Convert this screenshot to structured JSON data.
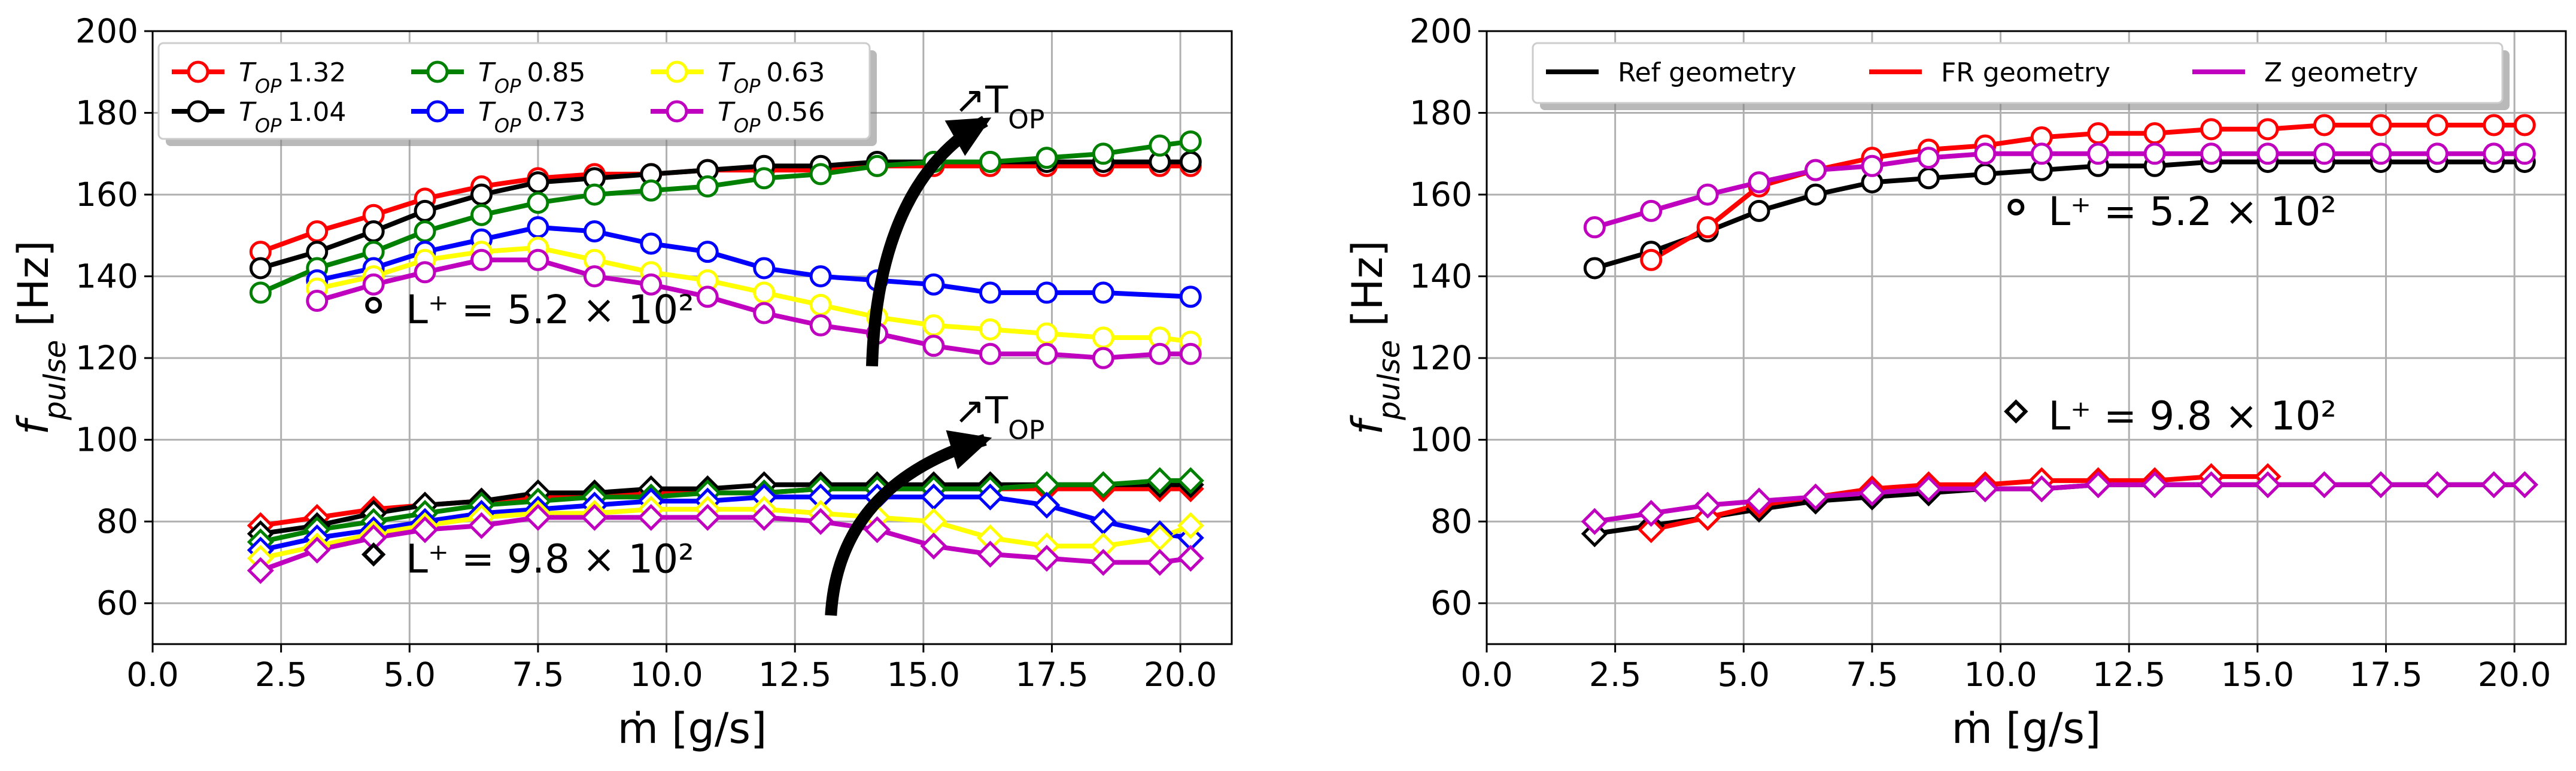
{
  "chart_data": [
    {
      "id": "left",
      "type": "line",
      "xlabel": "ṁ [g/s]",
      "ylabel": "f",
      "ylabel_sub": "pulse",
      "ylabel_unit": " [Hz]",
      "xlim": [
        0,
        21
      ],
      "ylim": [
        50,
        200
      ],
      "xticks": [
        0,
        2.5,
        5,
        7.5,
        10,
        12.5,
        15,
        17.5,
        20
      ],
      "xtick_labels": [
        "0.0",
        "2.5",
        "5.0",
        "7.5",
        "10.0",
        "12.5",
        "15.0",
        "17.5",
        "20.0"
      ],
      "yticks": [
        60,
        80,
        100,
        120,
        140,
        160,
        180,
        200
      ],
      "ytick_labels": [
        "60",
        "80",
        "100",
        "120",
        "140",
        "160",
        "180",
        "200"
      ],
      "grid": true,
      "legend": {
        "position": "top-left",
        "columns": 3,
        "prefix": "T",
        "prefix_sub": "OP",
        "entries": [
          {
            "label": "1.32",
            "color": "#ff0000"
          },
          {
            "label": "1.04",
            "color": "#000000"
          },
          {
            "label": "0.85",
            "color": "#008000"
          },
          {
            "label": "0.73",
            "color": "#0000ff"
          },
          {
            "label": "0.63",
            "color": "#ffff00"
          },
          {
            "label": "0.56",
            "color": "#bf00bf"
          }
        ]
      },
      "annotations": [
        {
          "text": "L⁺ = 5.2 × 10²",
          "marker": "circle",
          "x": 4.3,
          "y": 130
        },
        {
          "text": "L⁺ = 9.8 × 10²",
          "marker": "diamond",
          "x": 4.3,
          "y": 69
        },
        {
          "text": "↗T",
          "sub": "OP",
          "x": 15.6,
          "y": 180
        },
        {
          "text": "↗T",
          "sub": "OP",
          "x": 15.6,
          "y": 104
        }
      ],
      "arrows": [
        {
          "from": [
            14.0,
            118
          ],
          "to": [
            16.2,
            178
          ]
        },
        {
          "from": [
            13.2,
            57
          ],
          "to": [
            16.2,
            100
          ]
        }
      ],
      "series": [
        {
          "name": "T_OP 1.32 L+5.2e2",
          "color": "#ff0000",
          "marker": "circle",
          "x": [
            2.1,
            3.2,
            4.3,
            5.3,
            6.4,
            7.5,
            8.6,
            9.7,
            10.8,
            11.9,
            13.0,
            14.1,
            15.2,
            16.3,
            17.4,
            18.5,
            19.6,
            20.2
          ],
          "y": [
            146,
            151,
            155,
            159,
            162,
            164,
            165,
            165,
            166,
            166,
            166,
            167,
            167,
            167,
            167,
            167,
            167,
            167
          ]
        },
        {
          "name": "T_OP 1.04 L+5.2e2",
          "color": "#000000",
          "marker": "circle",
          "x": [
            2.1,
            3.2,
            4.3,
            5.3,
            6.4,
            7.5,
            8.6,
            9.7,
            10.8,
            11.9,
            13.0,
            14.1,
            15.2,
            16.3,
            17.4,
            18.5,
            19.6,
            20.2
          ],
          "y": [
            142,
            146,
            151,
            156,
            160,
            163,
            164,
            165,
            166,
            167,
            167,
            168,
            168,
            168,
            168,
            168,
            168,
            168
          ]
        },
        {
          "name": "T_OP 0.85 L+5.2e2",
          "color": "#008000",
          "marker": "circle",
          "x": [
            2.1,
            3.2,
            4.3,
            5.3,
            6.4,
            7.5,
            8.6,
            9.7,
            10.8,
            11.9,
            13.0,
            14.1,
            15.2,
            16.3,
            17.4,
            18.5,
            19.6,
            20.2
          ],
          "y": [
            136,
            142,
            146,
            151,
            155,
            158,
            160,
            161,
            162,
            164,
            165,
            167,
            168,
            168,
            169,
            170,
            172,
            173
          ]
        },
        {
          "name": "T_OP 0.73 L+5.2e2",
          "color": "#0000ff",
          "marker": "circle",
          "x": [
            3.2,
            4.3,
            5.3,
            6.4,
            7.5,
            8.6,
            9.7,
            10.8,
            11.9,
            13.0,
            14.1,
            15.2,
            16.3,
            17.4,
            18.5,
            20.2
          ],
          "y": [
            139,
            142,
            146,
            149,
            152,
            151,
            148,
            146,
            142,
            140,
            139,
            138,
            136,
            136,
            136,
            135
          ]
        },
        {
          "name": "T_OP 0.63 L+5.2e2",
          "color": "#ffff00",
          "marker": "circle",
          "x": [
            3.2,
            4.3,
            5.3,
            6.4,
            7.5,
            8.6,
            9.7,
            10.8,
            11.9,
            13.0,
            14.1,
            15.2,
            16.3,
            17.4,
            18.5,
            19.6,
            20.2
          ],
          "y": [
            137,
            140,
            144,
            146,
            147,
            144,
            141,
            139,
            136,
            133,
            130,
            128,
            127,
            126,
            125,
            125,
            124
          ]
        },
        {
          "name": "T_OP 0.56 L+5.2e2",
          "color": "#bf00bf",
          "marker": "circle",
          "x": [
            3.2,
            4.3,
            5.3,
            6.4,
            7.5,
            8.6,
            9.7,
            10.8,
            11.9,
            13.0,
            14.1,
            15.2,
            16.3,
            17.4,
            18.5,
            19.6,
            20.2
          ],
          "y": [
            134,
            138,
            141,
            144,
            144,
            140,
            138,
            135,
            131,
            128,
            126,
            123,
            121,
            121,
            120,
            121,
            121
          ]
        },
        {
          "name": "T_OP 1.32 L+9.8e2",
          "color": "#ff0000",
          "marker": "diamond",
          "x": [
            2.1,
            3.2,
            4.3,
            5.3,
            6.4,
            7.5,
            8.6,
            9.7,
            10.8,
            11.9,
            13.0,
            14.1,
            15.2,
            16.3,
            17.4,
            18.5,
            19.6,
            20.2
          ],
          "y": [
            79,
            81,
            83,
            84,
            85,
            86,
            86,
            87,
            87,
            87,
            88,
            88,
            88,
            88,
            88,
            88,
            88,
            88
          ]
        },
        {
          "name": "T_OP 1.04 L+9.8e2",
          "color": "#000000",
          "marker": "diamond",
          "x": [
            2.1,
            3.2,
            4.3,
            5.3,
            6.4,
            7.5,
            8.6,
            9.7,
            10.8,
            11.9,
            13.0,
            14.1,
            15.2,
            16.3,
            17.4,
            18.5,
            19.6,
            20.2
          ],
          "y": [
            77,
            79,
            82,
            84,
            85,
            87,
            87,
            88,
            88,
            89,
            89,
            89,
            89,
            89,
            89,
            89,
            89,
            89
          ]
        },
        {
          "name": "T_OP 0.85 L+9.8e2",
          "color": "#008000",
          "marker": "diamond",
          "x": [
            2.1,
            3.2,
            4.3,
            5.3,
            6.4,
            7.5,
            8.6,
            9.7,
            10.8,
            11.9,
            13.0,
            14.1,
            15.2,
            16.3,
            17.4,
            18.5,
            19.6,
            20.2
          ],
          "y": [
            75,
            78,
            80,
            82,
            84,
            85,
            86,
            86,
            87,
            87,
            88,
            88,
            88,
            88,
            89,
            89,
            90,
            90
          ]
        },
        {
          "name": "T_OP 0.73 L+9.8e2",
          "color": "#0000ff",
          "marker": "diamond",
          "x": [
            2.1,
            3.2,
            4.3,
            5.3,
            6.4,
            7.5,
            8.6,
            9.7,
            10.8,
            11.9,
            13.0,
            14.1,
            15.2,
            16.3,
            17.4,
            18.5,
            19.6,
            20.2
          ],
          "y": [
            73,
            76,
            78,
            80,
            82,
            83,
            84,
            85,
            85,
            86,
            86,
            86,
            86,
            86,
            84,
            80,
            77,
            76
          ]
        },
        {
          "name": "T_OP 0.63 L+9.8e2",
          "color": "#ffff00",
          "marker": "diamond",
          "x": [
            2.1,
            3.2,
            4.3,
            5.3,
            6.4,
            7.5,
            8.6,
            9.7,
            10.8,
            11.9,
            13.0,
            14.1,
            15.2,
            16.3,
            17.4,
            18.5,
            19.6,
            20.2
          ],
          "y": [
            71,
            74,
            77,
            79,
            81,
            82,
            82,
            83,
            83,
            83,
            82,
            81,
            80,
            76,
            74,
            74,
            76,
            79
          ]
        },
        {
          "name": "T_OP 0.56 L+9.8e2",
          "color": "#bf00bf",
          "marker": "diamond",
          "x": [
            2.1,
            3.2,
            4.3,
            5.3,
            6.4,
            7.5,
            8.6,
            9.7,
            10.8,
            11.9,
            13.0,
            14.1,
            15.2,
            16.3,
            17.4,
            18.5,
            19.6,
            20.2
          ],
          "y": [
            68,
            73,
            76,
            78,
            79,
            81,
            81,
            81,
            81,
            81,
            80,
            78,
            74,
            72,
            71,
            70,
            70,
            71
          ]
        }
      ]
    },
    {
      "id": "right",
      "type": "line",
      "xlabel": "ṁ [g/s]",
      "ylabel": "f",
      "ylabel_sub": "pulse",
      "ylabel_unit": " [Hz]",
      "xlim": [
        0,
        21
      ],
      "ylim": [
        50,
        200
      ],
      "xticks": [
        0,
        2.5,
        5,
        7.5,
        10,
        12.5,
        15,
        17.5,
        20
      ],
      "xtick_labels": [
        "0.0",
        "2.5",
        "5.0",
        "7.5",
        "10.0",
        "12.5",
        "15.0",
        "17.5",
        "20.0"
      ],
      "yticks": [
        60,
        80,
        100,
        120,
        140,
        160,
        180,
        200
      ],
      "ytick_labels": [
        "60",
        "80",
        "100",
        "120",
        "140",
        "160",
        "180",
        "200"
      ],
      "grid": true,
      "legend": {
        "position": "top-center",
        "columns": 3,
        "entries": [
          {
            "label": "Ref geometry",
            "color": "#000000"
          },
          {
            "label": "FR geometry",
            "color": "#ff0000"
          },
          {
            "label": "Z geometry",
            "color": "#bf00bf"
          }
        ]
      },
      "annotations": [
        {
          "text": "L⁺ = 5.2 × 10²",
          "marker": "circle",
          "x": 10.3,
          "y": 154
        },
        {
          "text": "L⁺ = 9.8 × 10²",
          "marker": "diamond",
          "x": 10.3,
          "y": 104
        }
      ],
      "series": [
        {
          "name": "Ref geometry L+5.2e2",
          "color": "#000000",
          "marker": "circle",
          "x": [
            2.1,
            3.2,
            4.3,
            5.3,
            6.4,
            7.5,
            8.6,
            9.7,
            10.8,
            11.9,
            13.0,
            14.1,
            15.2,
            16.3,
            17.4,
            18.5,
            19.6,
            20.2
          ],
          "y": [
            142,
            146,
            151,
            156,
            160,
            163,
            164,
            165,
            166,
            167,
            167,
            168,
            168,
            168,
            168,
            168,
            168,
            168
          ]
        },
        {
          "name": "FR geometry L+5.2e2",
          "color": "#ff0000",
          "marker": "circle",
          "x": [
            3.2,
            4.3,
            5.3,
            6.4,
            7.5,
            8.6,
            9.7,
            10.8,
            11.9,
            13.0,
            14.1,
            15.2,
            16.3,
            17.4,
            18.5,
            19.6,
            20.2
          ],
          "y": [
            144,
            152,
            162,
            166,
            169,
            171,
            172,
            174,
            175,
            175,
            176,
            176,
            177,
            177,
            177,
            177,
            177
          ]
        },
        {
          "name": "Z geometry L+5.2e2",
          "color": "#bf00bf",
          "marker": "circle",
          "x": [
            2.1,
            3.2,
            4.3,
            5.3,
            6.4,
            7.5,
            8.6,
            9.7,
            10.8,
            11.9,
            13.0,
            14.1,
            15.2,
            16.3,
            17.4,
            18.5,
            19.6,
            20.2
          ],
          "y": [
            152,
            156,
            160,
            163,
            166,
            167,
            169,
            170,
            170,
            170,
            170,
            170,
            170,
            170,
            170,
            170,
            170,
            170
          ]
        },
        {
          "name": "Ref geometry L+9.8e2",
          "color": "#000000",
          "marker": "diamond",
          "x": [
            2.1,
            3.2,
            4.3,
            5.3,
            6.4,
            7.5,
            8.6,
            9.7,
            10.8,
            11.9,
            13.0,
            14.1,
            15.2,
            16.3,
            17.4,
            18.5,
            19.6,
            20.2
          ],
          "y": [
            77,
            79,
            81,
            83,
            85,
            86,
            87,
            88,
            88,
            89,
            89,
            89,
            89,
            89,
            89,
            89,
            89,
            89
          ]
        },
        {
          "name": "FR geometry L+9.8e2",
          "color": "#ff0000",
          "marker": "diamond",
          "x": [
            3.2,
            4.3,
            5.3,
            6.4,
            7.5,
            8.6,
            9.7,
            10.8,
            11.9,
            13.0,
            14.1,
            15.2
          ],
          "y": [
            78,
            81,
            84,
            86,
            88,
            89,
            89,
            90,
            90,
            90,
            91,
            91
          ]
        },
        {
          "name": "Z geometry L+9.8e2",
          "color": "#bf00bf",
          "marker": "diamond",
          "x": [
            2.1,
            3.2,
            4.3,
            5.3,
            6.4,
            7.5,
            8.6,
            9.7,
            10.8,
            11.9,
            13.0,
            14.1,
            15.2,
            16.3,
            17.4,
            18.5,
            19.6,
            20.2
          ],
          "y": [
            80,
            82,
            84,
            85,
            86,
            87,
            88,
            88,
            88,
            89,
            89,
            89,
            89,
            89,
            89,
            89,
            89,
            89
          ]
        }
      ]
    }
  ]
}
